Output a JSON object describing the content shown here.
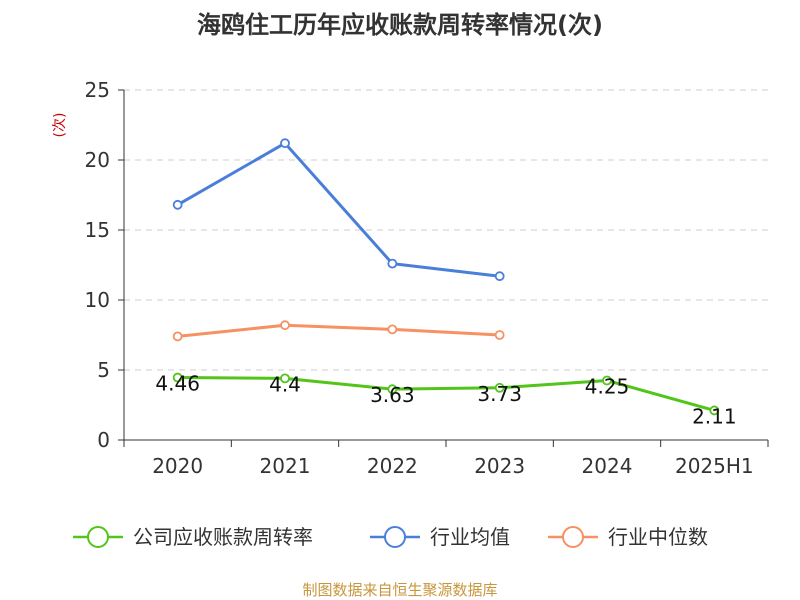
{
  "chart_data": {
    "type": "line",
    "title": "海鸥住工历年应收账款周转率情况(次)",
    "ylabel": "(次)",
    "categories": [
      "2020",
      "2021",
      "2022",
      "2023",
      "2024",
      "2025H1"
    ],
    "ylim": [
      0,
      25
    ],
    "yticks": [
      "0",
      "5",
      "10",
      "15",
      "20",
      "25"
    ],
    "grid": true,
    "legend_position": "bottom",
    "series": [
      {
        "name": "公司应收账款周转率",
        "color": "#52c41a",
        "values": [
          4.46,
          4.4,
          3.63,
          3.73,
          4.25,
          2.11
        ],
        "labels": [
          "4.46",
          "4.4",
          "3.63",
          "3.73",
          "4.25",
          "2.11"
        ]
      },
      {
        "name": "行业均值",
        "color": "#4a7fd9",
        "values": [
          16.8,
          21.2,
          12.6,
          11.7,
          null,
          null
        ]
      },
      {
        "name": "行业中位数",
        "color": "#f59162",
        "values": [
          7.4,
          8.2,
          7.9,
          7.5,
          null,
          null
        ]
      }
    ]
  },
  "source": "制图数据来自恒生聚源数据库"
}
